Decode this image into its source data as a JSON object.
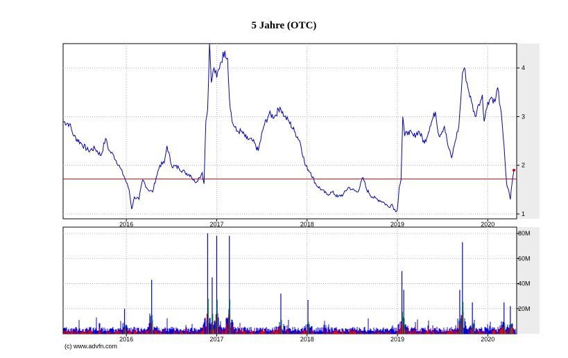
{
  "chart_data": [
    {
      "type": "line",
      "title": "5 Jahre (OTC)",
      "xlabel": "",
      "ylabel": "",
      "x_ticks": [
        "2016",
        "2017",
        "2018",
        "2019",
        "2020"
      ],
      "x_tick_years": [
        2016,
        2017,
        2018,
        2019,
        2020
      ],
      "xlim": [
        2015.3,
        2020.32
      ],
      "y_ticks": [
        "1",
        "2",
        "3",
        "4"
      ],
      "y_tick_values": [
        1,
        2,
        3,
        4
      ],
      "ylim": [
        0.9,
        4.5
      ],
      "grid": true,
      "reference_line": {
        "value": 1.72,
        "color": "#dd0000"
      },
      "last_point": {
        "x": 2020.29,
        "y": 1.9
      },
      "series": [
        {
          "color": "#0000cc",
          "points": [
            [
              2015.3,
              2.9
            ],
            [
              2015.37,
              2.85
            ],
            [
              2015.42,
              2.6
            ],
            [
              2015.5,
              2.45
            ],
            [
              2015.58,
              2.3
            ],
            [
              2015.65,
              2.35
            ],
            [
              2015.72,
              2.2
            ],
            [
              2015.77,
              2.55
            ],
            [
              2015.81,
              2.3
            ],
            [
              2015.86,
              2.2
            ],
            [
              2015.93,
              1.95
            ],
            [
              2015.98,
              1.75
            ],
            [
              2016.03,
              1.5
            ],
            [
              2016.06,
              1.1
            ],
            [
              2016.09,
              1.35
            ],
            [
              2016.14,
              1.3
            ],
            [
              2016.18,
              1.7
            ],
            [
              2016.24,
              1.5
            ],
            [
              2016.29,
              1.45
            ],
            [
              2016.33,
              1.75
            ],
            [
              2016.37,
              2.0
            ],
            [
              2016.42,
              2.05
            ],
            [
              2016.45,
              2.4
            ],
            [
              2016.5,
              2.0
            ],
            [
              2016.58,
              1.95
            ],
            [
              2016.65,
              1.85
            ],
            [
              2016.71,
              1.8
            ],
            [
              2016.76,
              1.65
            ],
            [
              2016.81,
              1.75
            ],
            [
              2016.84,
              1.85
            ],
            [
              2016.86,
              1.62
            ],
            [
              2016.88,
              2.9
            ],
            [
              2016.9,
              3.15
            ],
            [
              2016.92,
              4.5
            ],
            [
              2016.94,
              3.7
            ],
            [
              2016.97,
              4.0
            ],
            [
              2017.0,
              3.8
            ],
            [
              2017.04,
              4.1
            ],
            [
              2017.09,
              4.35
            ],
            [
              2017.12,
              4.2
            ],
            [
              2017.14,
              3.4
            ],
            [
              2017.17,
              2.9
            ],
            [
              2017.22,
              2.7
            ],
            [
              2017.27,
              2.7
            ],
            [
              2017.33,
              2.55
            ],
            [
              2017.4,
              2.5
            ],
            [
              2017.46,
              2.3
            ],
            [
              2017.52,
              2.8
            ],
            [
              2017.58,
              3.05
            ],
            [
              2017.64,
              3.0
            ],
            [
              2017.7,
              3.2
            ],
            [
              2017.75,
              3.0
            ],
            [
              2017.8,
              2.9
            ],
            [
              2017.86,
              2.7
            ],
            [
              2017.92,
              2.5
            ],
            [
              2017.98,
              2.0
            ],
            [
              2018.04,
              1.85
            ],
            [
              2018.1,
              1.6
            ],
            [
              2018.16,
              1.5
            ],
            [
              2018.22,
              1.4
            ],
            [
              2018.28,
              1.45
            ],
            [
              2018.34,
              1.35
            ],
            [
              2018.4,
              1.4
            ],
            [
              2018.46,
              1.55
            ],
            [
              2018.5,
              1.5
            ],
            [
              2018.56,
              1.45
            ],
            [
              2018.62,
              1.75
            ],
            [
              2018.66,
              1.5
            ],
            [
              2018.72,
              1.35
            ],
            [
              2018.78,
              1.3
            ],
            [
              2018.84,
              1.25
            ],
            [
              2018.9,
              1.15
            ],
            [
              2018.94,
              1.2
            ],
            [
              2018.98,
              1.05
            ],
            [
              2019.0,
              1.1
            ],
            [
              2019.02,
              1.55
            ],
            [
              2019.04,
              1.7
            ],
            [
              2019.06,
              3.0
            ],
            [
              2019.08,
              2.6
            ],
            [
              2019.12,
              2.7
            ],
            [
              2019.18,
              2.6
            ],
            [
              2019.24,
              2.7
            ],
            [
              2019.3,
              2.45
            ],
            [
              2019.36,
              2.8
            ],
            [
              2019.42,
              3.1
            ],
            [
              2019.46,
              2.6
            ],
            [
              2019.52,
              2.8
            ],
            [
              2019.56,
              2.4
            ],
            [
              2019.6,
              2.15
            ],
            [
              2019.64,
              2.5
            ],
            [
              2019.68,
              2.8
            ],
            [
              2019.7,
              3.3
            ],
            [
              2019.72,
              3.9
            ],
            [
              2019.74,
              4.0
            ],
            [
              2019.78,
              3.6
            ],
            [
              2019.82,
              3.3
            ],
            [
              2019.86,
              3.0
            ],
            [
              2019.9,
              3.25
            ],
            [
              2019.94,
              3.45
            ],
            [
              2019.96,
              2.9
            ],
            [
              2020.0,
              3.3
            ],
            [
              2020.04,
              3.4
            ],
            [
              2020.08,
              3.3
            ],
            [
              2020.11,
              3.6
            ],
            [
              2020.14,
              3.2
            ],
            [
              2020.17,
              2.6
            ],
            [
              2020.19,
              2.1
            ],
            [
              2020.21,
              1.6
            ],
            [
              2020.23,
              1.5
            ],
            [
              2020.25,
              1.3
            ],
            [
              2020.27,
              1.65
            ],
            [
              2020.29,
              1.9
            ]
          ]
        }
      ]
    },
    {
      "type": "bar",
      "title": "",
      "xlabel": "",
      "ylabel": "",
      "x_ticks": [
        "2016",
        "2017",
        "2018",
        "2019",
        "2020"
      ],
      "x_tick_years": [
        2016,
        2017,
        2018,
        2019,
        2020
      ],
      "xlim": [
        2015.3,
        2020.32
      ],
      "y_ticks": [
        "20M",
        "40M",
        "60M",
        "80M"
      ],
      "y_tick_values": [
        20,
        40,
        60,
        80
      ],
      "ylim": [
        0,
        85
      ],
      "unit": "M",
      "grid": true,
      "colors": {
        "volume": "#0000dd",
        "down": "#ee0000",
        "up": "#00bb00"
      },
      "spikes": [
        {
          "x": 2015.98,
          "value": 20
        },
        {
          "x": 2016.28,
          "value": 43
        },
        {
          "x": 2016.9,
          "value": 80
        },
        {
          "x": 2016.95,
          "value": 45
        },
        {
          "x": 2017.0,
          "value": 78
        },
        {
          "x": 2017.14,
          "value": 78
        },
        {
          "x": 2017.71,
          "value": 32
        },
        {
          "x": 2018.01,
          "value": 27
        },
        {
          "x": 2019.05,
          "value": 50
        },
        {
          "x": 2019.07,
          "value": 35
        },
        {
          "x": 2019.69,
          "value": 35
        },
        {
          "x": 2019.72,
          "value": 73
        },
        {
          "x": 2019.83,
          "value": 25
        },
        {
          "x": 2020.18,
          "value": 25
        },
        {
          "x": 2020.25,
          "value": 22
        }
      ]
    }
  ],
  "credit": "(c) www.advfn.com"
}
